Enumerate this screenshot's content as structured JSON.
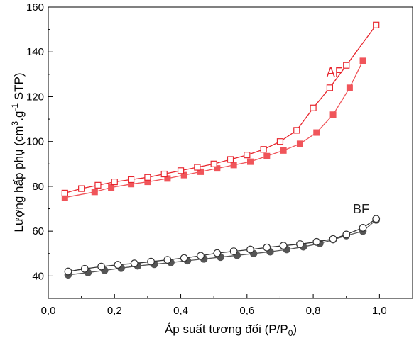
{
  "chart_data": {
    "type": "line",
    "xlabel_parts": [
      "Áp suất tương đối (P/P",
      "0",
      ")"
    ],
    "ylabel_parts": [
      "Lượng hấp phụ (cm",
      "3",
      ".g",
      "-1",
      " STP)"
    ],
    "xlim": [
      0.0,
      1.1
    ],
    "ylim": [
      30,
      160
    ],
    "xticks": [
      0.0,
      0.2,
      0.4,
      0.6,
      0.8,
      1.0
    ],
    "xtick_labels": [
      "0,0",
      "0,2",
      "0,4",
      "0,6",
      "0,8",
      "1,0"
    ],
    "yticks": [
      40,
      60,
      80,
      100,
      120,
      140,
      160
    ],
    "ytick_labels": [
      "40",
      "60",
      "80",
      "100",
      "120",
      "140",
      "160"
    ],
    "series": [
      {
        "name": "AF",
        "branch": "adsorption",
        "color": "#f0555a",
        "marker": "filled-square",
        "x": [
          0.05,
          0.14,
          0.19,
          0.25,
          0.3,
          0.36,
          0.41,
          0.46,
          0.51,
          0.56,
          0.61,
          0.66,
          0.71,
          0.76,
          0.81,
          0.86,
          0.91,
          0.95
        ],
        "y": [
          75,
          77.5,
          79.5,
          81,
          82,
          83.5,
          85,
          86.5,
          88,
          89.5,
          91,
          93.5,
          96,
          99,
          104,
          112,
          124,
          136
        ]
      },
      {
        "name": "AF",
        "branch": "desorption",
        "color": "#e8262e",
        "marker": "open-square",
        "x": [
          0.99,
          0.9,
          0.85,
          0.8,
          0.75,
          0.7,
          0.65,
          0.6,
          0.55,
          0.5,
          0.45,
          0.4,
          0.35,
          0.3,
          0.25,
          0.2,
          0.15,
          0.1,
          0.05
        ],
        "y": [
          152,
          134,
          124,
          115,
          105,
          100,
          96.5,
          94,
          92,
          90,
          88.5,
          87,
          85.5,
          84,
          83,
          82,
          80.5,
          79,
          77
        ]
      },
      {
        "name": "BF",
        "branch": "adsorption",
        "color": "#555555",
        "marker": "filled-circle",
        "x": [
          0.06,
          0.12,
          0.17,
          0.22,
          0.27,
          0.32,
          0.37,
          0.42,
          0.47,
          0.52,
          0.57,
          0.62,
          0.67,
          0.72,
          0.77,
          0.82,
          0.86,
          0.9,
          0.95,
          0.99
        ],
        "y": [
          40.5,
          41.5,
          42.5,
          43.5,
          44.5,
          45.2,
          46,
          46.8,
          47.6,
          48.4,
          49.2,
          50,
          50.8,
          51.8,
          53,
          54.5,
          56.2,
          58,
          60,
          65
        ]
      },
      {
        "name": "BF",
        "branch": "desorption",
        "color": "#333333",
        "marker": "open-circle",
        "x": [
          0.99,
          0.95,
          0.9,
          0.86,
          0.81,
          0.76,
          0.71,
          0.66,
          0.61,
          0.56,
          0.51,
          0.46,
          0.41,
          0.36,
          0.31,
          0.26,
          0.21,
          0.16,
          0.11,
          0.06
        ],
        "y": [
          65.5,
          61.5,
          58.5,
          56.5,
          55.2,
          54.2,
          53.5,
          52.7,
          51.8,
          51,
          50.2,
          49,
          48,
          47.2,
          46.4,
          45.6,
          45,
          44.2,
          43.2,
          42
        ]
      }
    ],
    "annotations": [
      {
        "text": "AF",
        "x": 0.84,
        "y": 129,
        "color": "#e8262e"
      },
      {
        "text": "BF",
        "x": 0.92,
        "y": 68,
        "color": "#222222"
      }
    ],
    "grid": false,
    "legend": "none"
  }
}
